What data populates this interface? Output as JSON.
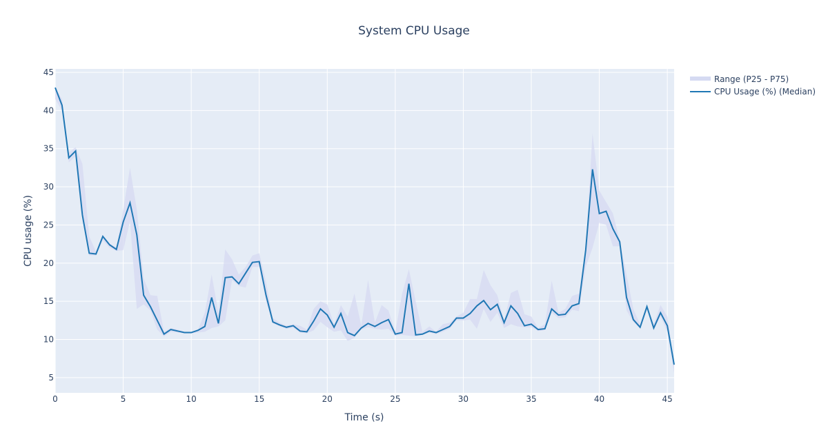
{
  "chart_data": {
    "type": "line",
    "title": "System CPU Usage",
    "xlabel": "Time (s)",
    "ylabel": "CPU usage (%)",
    "xlim": [
      0,
      45.5
    ],
    "ylim": [
      3.0,
      45.45
    ],
    "xticks": [
      0,
      5,
      10,
      15,
      20,
      25,
      30,
      35,
      40,
      45
    ],
    "yticks": [
      5,
      10,
      15,
      20,
      25,
      30,
      35,
      40,
      45
    ],
    "grid": true,
    "legend_position": "top-right",
    "colors": {
      "line": "#1f77b4",
      "band": "#d5daf2",
      "plot_bg": "#e5ecf6",
      "grid": "#ffffff"
    },
    "x": [
      0,
      0.5,
      1,
      1.5,
      2,
      2.5,
      3,
      3.5,
      4,
      4.5,
      5,
      5.5,
      6,
      6.5,
      7,
      7.5,
      8,
      8.5,
      9,
      9.5,
      10,
      10.5,
      11,
      11.5,
      12,
      12.5,
      13,
      13.5,
      14,
      14.5,
      15,
      15.5,
      16,
      16.5,
      17,
      17.5,
      18,
      18.5,
      19,
      19.5,
      20,
      20.5,
      21,
      21.5,
      22,
      22.5,
      23,
      23.5,
      24,
      24.5,
      25,
      25.5,
      26,
      26.5,
      27,
      27.5,
      28,
      28.5,
      29,
      29.5,
      30,
      30.5,
      31,
      31.5,
      32,
      32.5,
      33,
      33.5,
      34,
      34.5,
      35,
      35.5,
      36,
      36.5,
      37,
      37.5,
      38,
      38.5,
      39,
      39.5,
      40,
      40.5,
      41,
      41.5,
      42,
      42.5,
      43,
      43.5,
      44,
      44.5,
      45,
      45.5
    ],
    "series": [
      {
        "name": "CPU Usage (%) (Median)",
        "values": [
          43.0,
          40.7,
          33.8,
          34.7,
          26.3,
          21.3,
          21.2,
          23.5,
          22.4,
          21.8,
          25.4,
          27.9,
          23.7,
          15.8,
          14.3,
          12.5,
          10.7,
          11.3,
          11.1,
          10.9,
          10.9,
          11.2,
          11.7,
          15.5,
          12.1,
          18.1,
          18.2,
          17.3,
          18.7,
          20.1,
          20.2,
          15.8,
          12.3,
          11.9,
          11.6,
          11.8,
          11.1,
          11.0,
          12.4,
          14.0,
          13.2,
          11.6,
          13.4,
          10.9,
          10.5,
          11.5,
          12.1,
          11.7,
          12.2,
          12.6,
          10.7,
          10.9,
          17.3,
          10.6,
          10.7,
          11.1,
          10.9,
          11.3,
          11.7,
          12.8,
          12.8,
          13.4,
          14.4,
          15.1,
          13.9,
          14.6,
          12.2,
          14.4,
          13.4,
          11.8,
          12.0,
          11.3,
          11.4,
          14.0,
          13.2,
          13.3,
          14.4,
          14.7,
          21.7,
          32.3,
          26.5,
          26.8,
          24.5,
          22.8,
          15.5,
          12.6,
          11.6,
          14.3,
          11.5,
          13.5,
          11.8,
          6.7
        ]
      },
      {
        "name": "Range (P25 - P75)",
        "upper": [
          43.0,
          41.5,
          34.5,
          35.2,
          33.0,
          23.5,
          21.5,
          23.7,
          22.6,
          22.0,
          27.0,
          32.5,
          27.0,
          18.0,
          15.8,
          15.7,
          11.0,
          11.5,
          11.3,
          11.0,
          11.0,
          11.3,
          13.5,
          18.5,
          13.5,
          21.8,
          20.5,
          18.5,
          19.5,
          21.0,
          21.3,
          17.5,
          12.8,
          12.2,
          11.8,
          12.0,
          11.8,
          11.3,
          14.0,
          15.0,
          14.6,
          12.0,
          14.5,
          13.0,
          16.0,
          11.8,
          17.8,
          12.2,
          14.5,
          13.8,
          11.0,
          16.0,
          19.2,
          15.0,
          11.0,
          11.7,
          11.0,
          12.0,
          12.2,
          13.0,
          13.5,
          15.3,
          15.3,
          19.1,
          17.1,
          15.8,
          12.5,
          16.1,
          16.5,
          13.3,
          13.0,
          11.5,
          12.0,
          17.7,
          13.5,
          14.0,
          15.7,
          16.0,
          22.0,
          37.0,
          29.5,
          28.0,
          26.5,
          23.0,
          18.5,
          14.0,
          12.0,
          14.5,
          12.0,
          14.5,
          13.0,
          7.0
        ],
        "lower": [
          41.5,
          40.0,
          33.2,
          34.0,
          25.5,
          21.0,
          21.0,
          23.0,
          22.0,
          21.6,
          21.7,
          25.5,
          14.0,
          14.6,
          13.8,
          11.3,
          10.4,
          11.0,
          10.9,
          10.8,
          10.8,
          10.9,
          11.0,
          11.5,
          11.7,
          12.5,
          17.8,
          17.0,
          16.8,
          19.5,
          19.5,
          15.0,
          12.1,
          11.7,
          11.4,
          11.5,
          10.9,
          10.8,
          11.2,
          12.3,
          11.6,
          11.0,
          11.2,
          9.8,
          10.2,
          11.3,
          11.6,
          11.4,
          11.3,
          11.4,
          10.5,
          10.6,
          10.5,
          10.4,
          10.6,
          10.9,
          10.7,
          11.0,
          11.4,
          12.5,
          12.5,
          12.6,
          11.4,
          14.0,
          12.3,
          13.5,
          11.5,
          12.0,
          11.7,
          11.6,
          11.6,
          11.1,
          11.2,
          13.5,
          12.8,
          12.9,
          13.9,
          13.7,
          19.5,
          22.0,
          25.3,
          25.0,
          22.2,
          22.2,
          13.8,
          12.3,
          11.4,
          13.9,
          11.3,
          13.0,
          11.0,
          5.6
        ]
      }
    ]
  }
}
